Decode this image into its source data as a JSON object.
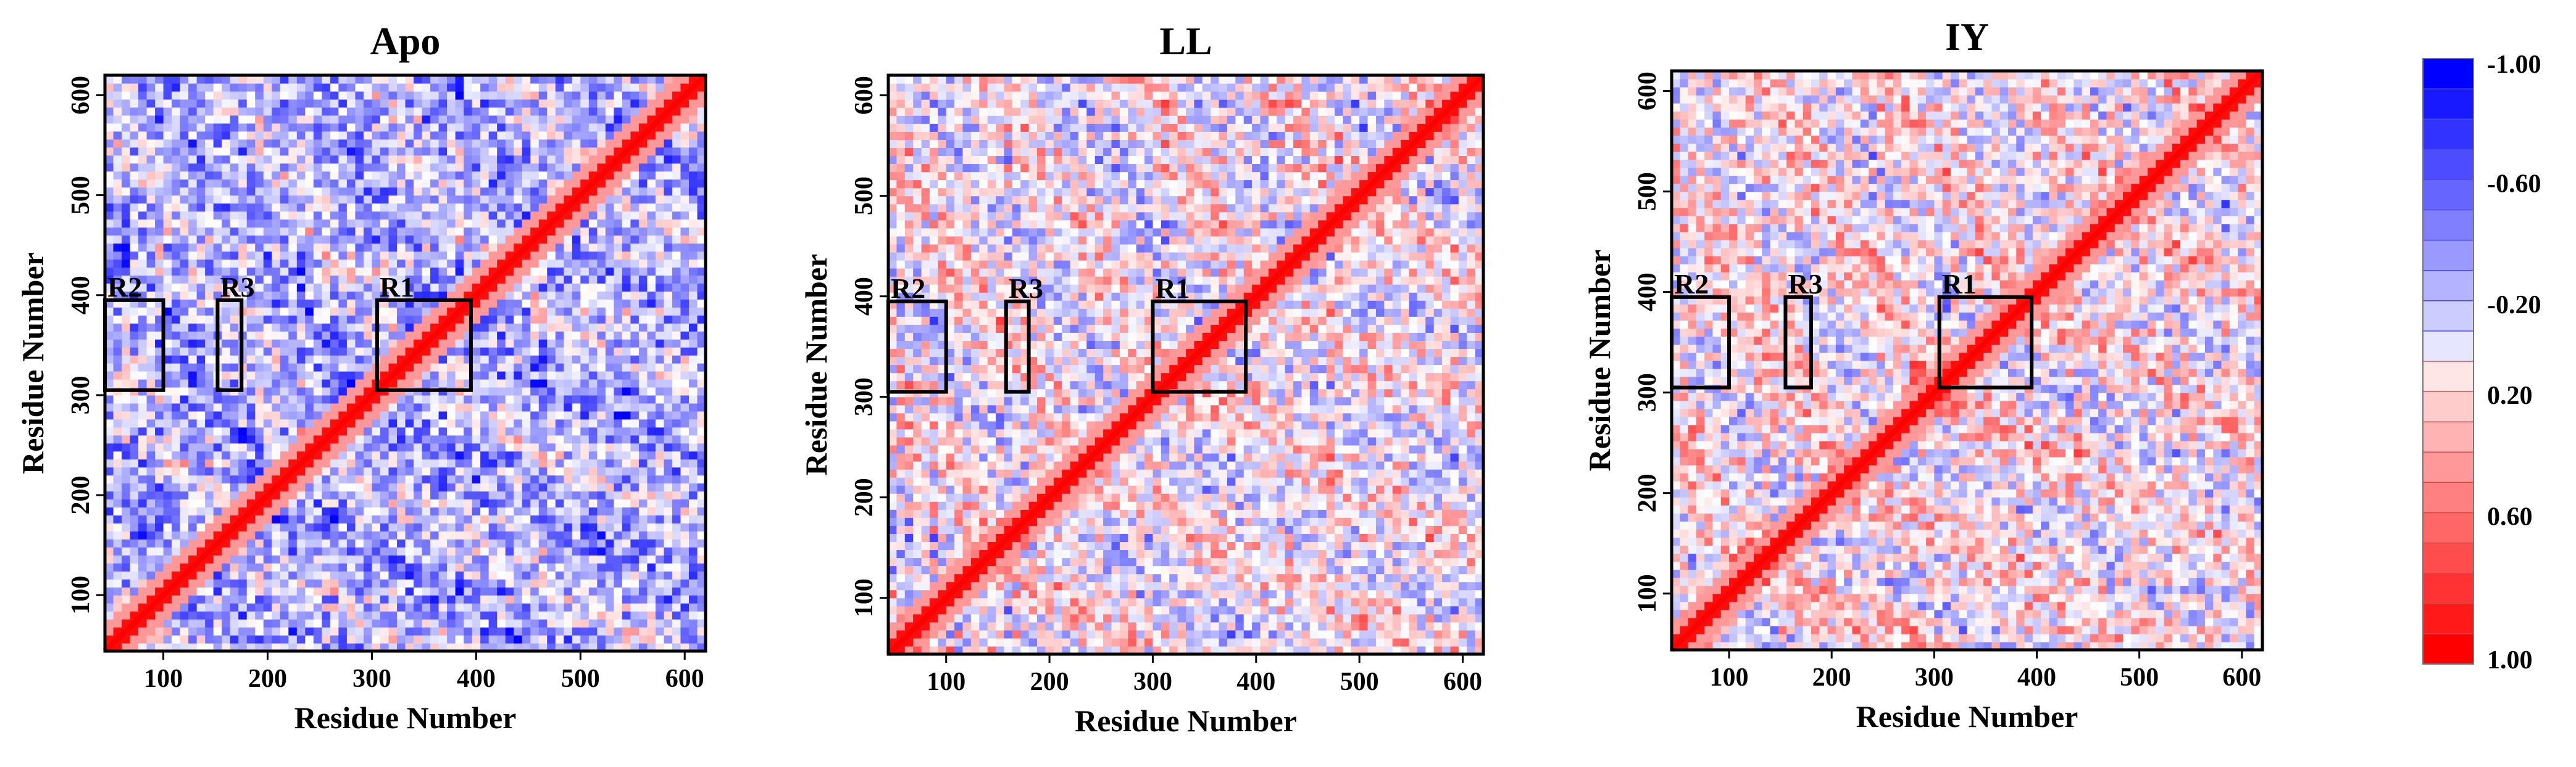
{
  "chart_data": [
    {
      "type": "heatmap",
      "title": "Apo",
      "xlabel": "Residue Number",
      "ylabel": "Residue Number",
      "xticks": [
        100,
        200,
        300,
        400,
        500,
        600
      ],
      "yticks": [
        100,
        200,
        300,
        400,
        500,
        600
      ],
      "xlim": [
        44,
        620
      ],
      "ylim": [
        44,
        620
      ],
      "value_range": [
        -1.0,
        1.0
      ],
      "regions": [
        {
          "label": "R1",
          "x_range": [
            305,
            395
          ],
          "y_range": [
            305,
            395
          ]
        },
        {
          "label": "R2",
          "x_range": [
            44,
            100
          ],
          "y_range": [
            305,
            395
          ]
        },
        {
          "label": "R3",
          "x_range": [
            152,
            175
          ],
          "y_range": [
            305,
            395
          ]
        }
      ]
    },
    {
      "type": "heatmap",
      "title": "LL",
      "xlabel": "Residue Number",
      "ylabel": "Residue Number",
      "xticks": [
        100,
        200,
        300,
        400,
        500,
        600
      ],
      "yticks": [
        100,
        200,
        300,
        400,
        500,
        600
      ],
      "xlim": [
        44,
        620
      ],
      "ylim": [
        44,
        620
      ],
      "value_range": [
        -1.0,
        1.0
      ],
      "regions": [
        {
          "label": "R1",
          "x_range": [
            300,
            390
          ],
          "y_range": [
            305,
            395
          ]
        },
        {
          "label": "R2",
          "x_range": [
            44,
            100
          ],
          "y_range": [
            305,
            395
          ]
        },
        {
          "label": "R3",
          "x_range": [
            158,
            180
          ],
          "y_range": [
            305,
            395
          ]
        }
      ]
    },
    {
      "type": "heatmap",
      "title": "IY",
      "xlabel": "Residue Number",
      "ylabel": "Residue Number",
      "xticks": [
        100,
        200,
        300,
        400,
        500,
        600
      ],
      "yticks": [
        100,
        200,
        300,
        400,
        500,
        600
      ],
      "xlim": [
        44,
        620
      ],
      "ylim": [
        44,
        620
      ],
      "value_range": [
        -1.0,
        1.0
      ],
      "regions": [
        {
          "label": "R1",
          "x_range": [
            305,
            395
          ],
          "y_range": [
            305,
            395
          ]
        },
        {
          "label": "R2",
          "x_range": [
            44,
            100
          ],
          "y_range": [
            305,
            395
          ]
        },
        {
          "label": "R3",
          "x_range": [
            155,
            180
          ],
          "y_range": [
            305,
            395
          ]
        }
      ]
    }
  ],
  "colorbar": {
    "min": -1.0,
    "max": 1.0,
    "labels": [
      "-1.00",
      "-0.60",
      "-0.20",
      "0.20",
      "0.60",
      "1.00"
    ],
    "label_values": [
      -1.0,
      -0.6,
      -0.2,
      0.2,
      0.6,
      1.0
    ],
    "levels": [
      -1.0,
      -0.9,
      -0.8,
      -0.7,
      -0.6,
      -0.5,
      -0.4,
      -0.3,
      -0.2,
      -0.1,
      0.1,
      0.2,
      0.3,
      0.4,
      0.5,
      0.6,
      0.7,
      0.8,
      0.9,
      1.0
    ],
    "negative_color": "#0000ff",
    "neutral_color": "#ffffff",
    "positive_color": "#ff0000"
  }
}
